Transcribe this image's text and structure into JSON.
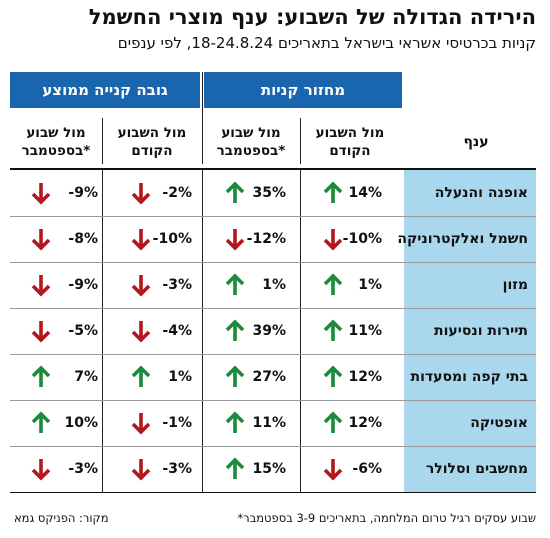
{
  "title": "הירידה הגדולה של השבוע: ענף מוצרי החשמל",
  "subtitle": "קניות בכרטיסי אשראי בישראל בתאריכים 18-24.8.24, לפי ענפים",
  "headers": {
    "group_turnover": "מחזור קניות",
    "group_avg": "גובה קנייה ממוצע",
    "category": "ענף",
    "vs_prev_week": "מול השבוע\nהקודם",
    "vs_september": "מול שבוע\nבספטמבר*"
  },
  "colors": {
    "header_blue": "#1a66ae",
    "category_bg": "#a9d8ee",
    "up": "#1b8a3a",
    "down": "#b3161d"
  },
  "chart_data": {
    "type": "table",
    "unit": "%",
    "columns": [
      "מחזור קניות - מול השבוע הקודם",
      "מחזור קניות - מול שבוע בספטמבר*",
      "גובה קנייה ממוצע - מול השבוע הקודם",
      "גובה קנייה ממוצע - מול שבוע בספטמבר*"
    ],
    "rows": [
      {
        "category": "אופנה והנעלה",
        "values": [
          14,
          35,
          -2,
          -9
        ]
      },
      {
        "category": "חשמל ואלקטרוניקה",
        "values": [
          -10,
          -12,
          -10,
          -8
        ]
      },
      {
        "category": "מזון",
        "values": [
          1,
          1,
          -3,
          -9
        ]
      },
      {
        "category": "תיירות ונסיעות",
        "values": [
          11,
          39,
          -4,
          -5
        ]
      },
      {
        "category": "בתי קפה ומסעדות",
        "values": [
          12,
          27,
          1,
          7
        ]
      },
      {
        "category": "אופטיקה",
        "values": [
          12,
          11,
          -1,
          10
        ]
      },
      {
        "category": "מחשבים וסלולר",
        "values": [
          -6,
          15,
          -3,
          -3
        ]
      }
    ]
  },
  "footnote": "*שבוע עסקים רגיל טרום המלחמה, בתאריכים 3-9 בספטמבר",
  "source": "מקור: הפניקס גמא"
}
